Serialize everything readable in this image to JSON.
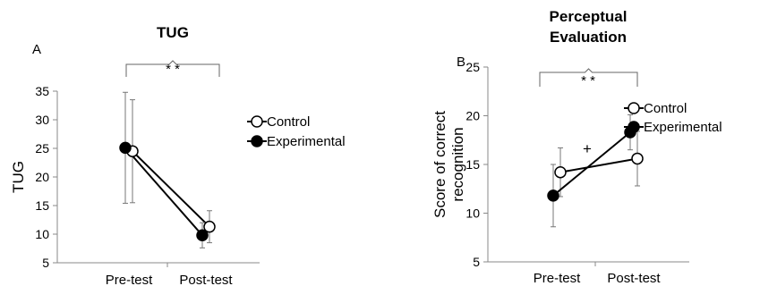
{
  "chart_data": [
    {
      "type": "line",
      "panel_label": "A",
      "title": "TUG",
      "ylabel": "TUG",
      "xlabel": "",
      "categories": [
        "Pre-test",
        "Post-test"
      ],
      "ylim": [
        5,
        35
      ],
      "yticks": [
        5,
        10,
        15,
        20,
        25,
        30,
        35
      ],
      "grid": false,
      "legend_position": "right",
      "significance": "* *",
      "extra_annotation": "",
      "series": [
        {
          "name": "Control",
          "marker": "open-circle",
          "values": [
            24.5,
            11.3
          ],
          "error": [
            9.0,
            2.8
          ]
        },
        {
          "name": "Experimental",
          "marker": "filled-circle",
          "values": [
            25.1,
            9.8
          ],
          "error": [
            9.7,
            2.2
          ]
        }
      ]
    },
    {
      "type": "line",
      "panel_label": "B",
      "title": "Perceptual Evaluation",
      "title_lines": [
        "Perceptual",
        "Evaluation"
      ],
      "ylabel": "Score of correct recognition",
      "ylabel_lines": [
        "Score of correct",
        "recognition"
      ],
      "xlabel": "",
      "categories": [
        "Pre-test",
        "Post-test"
      ],
      "ylim": [
        5,
        25
      ],
      "yticks": [
        5,
        10,
        15,
        20,
        25
      ],
      "grid": false,
      "legend_position": "top-right",
      "significance": "* *",
      "extra_annotation": "+",
      "series": [
        {
          "name": "Control",
          "marker": "open-circle",
          "values": [
            14.2,
            15.6
          ],
          "error": [
            2.5,
            2.8
          ]
        },
        {
          "name": "Experimental",
          "marker": "filled-circle",
          "values": [
            11.8,
            18.3
          ],
          "error": [
            3.2,
            1.8
          ]
        }
      ]
    }
  ]
}
